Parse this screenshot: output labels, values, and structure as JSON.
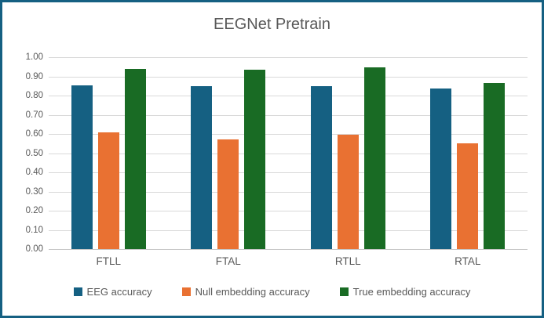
{
  "frame": {
    "border_color": "#156082",
    "background_color": "#FFFFFF"
  },
  "chart_data": {
    "type": "bar",
    "title": "EEGNet Pretrain",
    "categories": [
      "FTLL",
      "FTAL",
      "RTLL",
      "RTAL"
    ],
    "series": [
      {
        "name": "EEG accuracy",
        "color": "#156082",
        "values": [
          0.855,
          0.85,
          0.85,
          0.835
        ]
      },
      {
        "name": "Null embedding accuracy",
        "color": "#E97132",
        "values": [
          0.61,
          0.57,
          0.595,
          0.55
        ]
      },
      {
        "name": "True embedding accuracy",
        "color": "#196B24",
        "values": [
          0.94,
          0.935,
          0.945,
          0.865
        ]
      }
    ],
    "ylim": [
      0.0,
      1.0
    ],
    "ytick_step": 0.1,
    "ytick_labels": [
      "0.00",
      "0.10",
      "0.20",
      "0.30",
      "0.40",
      "0.50",
      "0.60",
      "0.70",
      "0.80",
      "0.90",
      "1.00"
    ],
    "xlabel": "",
    "ylabel": "",
    "grid": true,
    "legend_position": "bottom",
    "text_color": "#595959",
    "gridline_color": "#D9D9D9",
    "axis_line_color": "#C6C6C6"
  }
}
